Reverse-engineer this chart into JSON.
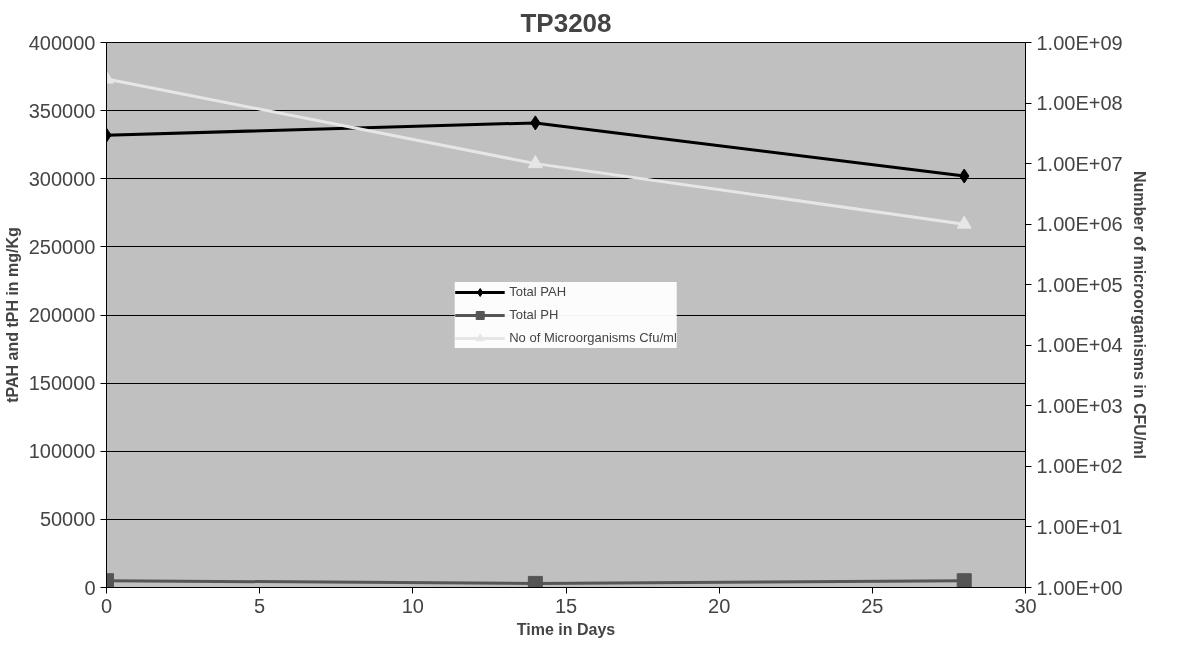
{
  "chart_data": {
    "type": "line",
    "title": "TP3208",
    "xlabel": "Time in Days",
    "ylabel": "tPAH and tPH in mg/Kg",
    "y2label": "Number of microorganisms in CFU/ml",
    "x": [
      0,
      14,
      28
    ],
    "series": [
      {
        "name": "Total PAH",
        "color": "#000000",
        "values": [
          332000,
          341000,
          302000
        ],
        "marker": "diamond"
      },
      {
        "name": "Total PH",
        "color": "#555555",
        "values": [
          5000,
          3000,
          5000
        ],
        "marker": "square"
      },
      {
        "name": "No of Microorganisms Cfu/ml",
        "color": "#e6e6e6",
        "values": [
          250000000,
          10000000,
          1000000
        ],
        "marker": "triangle",
        "axis": "y2"
      }
    ],
    "xlim": [
      0,
      30
    ],
    "xticks": [
      0,
      5,
      10,
      15,
      20,
      25,
      30
    ],
    "ylim": [
      0,
      400000
    ],
    "yticks": [
      0,
      50000,
      100000,
      150000,
      200000,
      250000,
      300000,
      350000,
      400000
    ],
    "y2lim": [
      1,
      1000000000
    ],
    "y2ticks": [
      {
        "value": 1,
        "label": "1.00E+00"
      },
      {
        "value": 10,
        "label": "1.00E+01"
      },
      {
        "value": 100,
        "label": "1.00E+02"
      },
      {
        "value": 1000,
        "label": "1.00E+03"
      },
      {
        "value": 10000,
        "label": "1.00E+04"
      },
      {
        "value": 100000,
        "label": "1.00E+05"
      },
      {
        "value": 1000000,
        "label": "1.00E+06"
      },
      {
        "value": 10000000,
        "label": "1.00E+07"
      },
      {
        "value": 100000000,
        "label": "1.00E+08"
      },
      {
        "value": 1000000000,
        "label": "1.00E+09"
      }
    ],
    "log": "y2",
    "grid": "y",
    "legend": "center",
    "line_style": "solid"
  }
}
